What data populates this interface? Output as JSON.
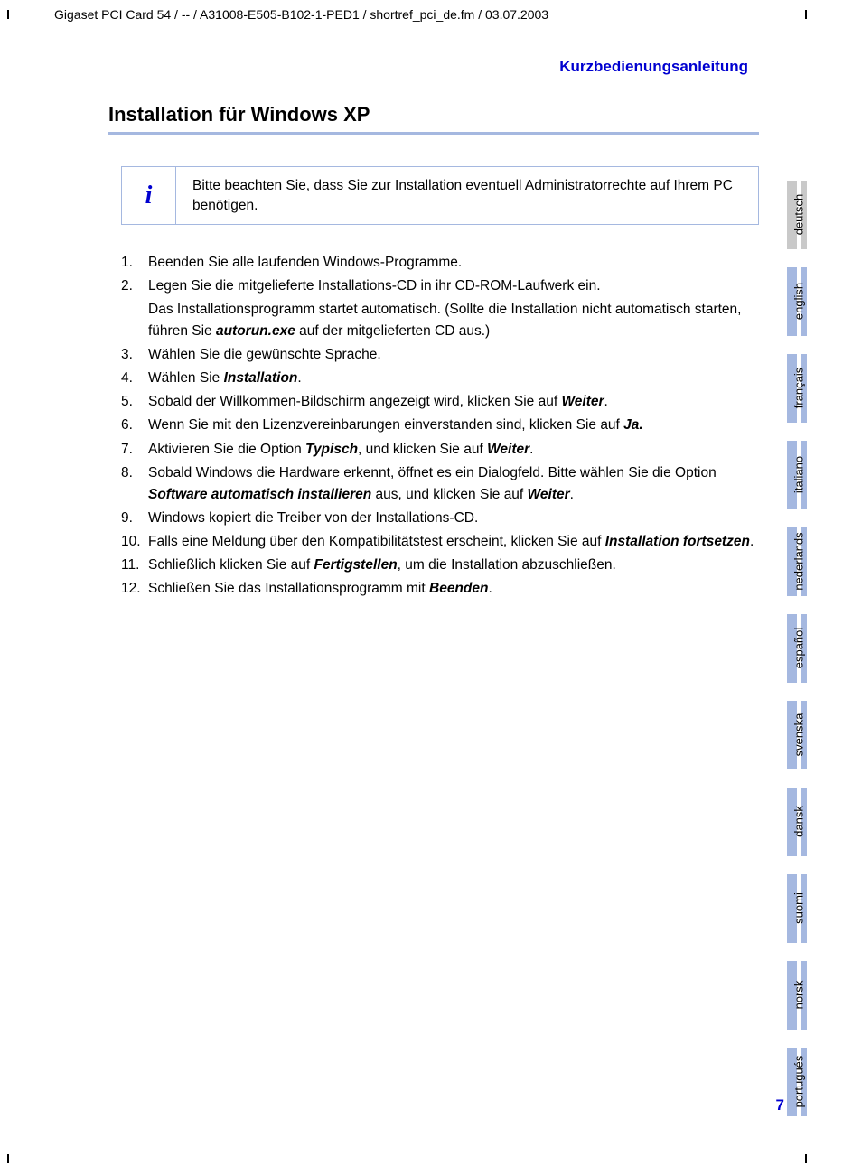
{
  "header_path": "Gigaset PCI Card 54 / -- / A31008-E505-B102-1-PED1 / shortref_pci_de.fm / 03.07.2003",
  "doc_header": "Kurzbedienungsanleitung",
  "section_title": "Installation für Windows XP",
  "info_icon": "i",
  "info_text": "Bitte beachten Sie, dass Sie zur Installation eventuell Administratorrechte auf Ihrem PC benötigen.",
  "steps": [
    {
      "n": "1.",
      "html": "Beenden Sie alle laufenden Windows-Programme."
    },
    {
      "n": "2.",
      "html": "Legen Sie die mitgelieferte Installations-CD in ihr CD-ROM-Laufwerk ein.",
      "sub": "Das Installationsprogramm startet automatisch. (Sollte die Installation nicht automatisch starten, führen Sie <span class='bi'>autorun.exe</span> auf der mitgelieferten CD aus.)"
    },
    {
      "n": "3.",
      "html": "Wählen Sie die gewünschte Sprache."
    },
    {
      "n": "4.",
      "html": "Wählen Sie <span class='bi'>Installation</span>."
    },
    {
      "n": "5.",
      "html": "Sobald der Willkommen-Bildschirm angezeigt wird, klicken Sie auf <span class='bi'>Weiter</span>."
    },
    {
      "n": "6.",
      "html": "Wenn Sie mit den Lizenzvereinbarungen einverstanden sind, klicken Sie auf <span class='bi'>Ja.</span>"
    },
    {
      "n": "7.",
      "html": "Aktivieren Sie die Option <span class='bi'>Typisch</span>, und klicken Sie auf <span class='bi'>Weiter</span>."
    },
    {
      "n": "8.",
      "html": "Sobald Windows die Hardware erkennt, öffnet es ein Dialogfeld. Bitte wählen Sie die Option <span class='bi'>Software automatisch installieren</span> aus, und klicken Sie auf <span class='bi'>Weiter</span>."
    },
    {
      "n": "9.",
      "html": "Windows kopiert die Treiber von der Installations-CD."
    },
    {
      "n": "10.",
      "html": "Falls eine Meldung über den Kompatibilitätstest erscheint, klicken Sie auf <span class='bi'>Installation fortsetzen</span>."
    },
    {
      "n": "11.",
      "html": "Schließlich klicken Sie auf <span class='bi'>Fertigstellen</span>, um die Installation abzuschließen."
    },
    {
      "n": "12.",
      "html": "Schließen Sie das Installationsprogramm mit <span class='bi'>Beenden</span>."
    }
  ],
  "tabs": [
    {
      "label": "deutsch",
      "active": true
    },
    {
      "label": "english",
      "active": false
    },
    {
      "label": "français",
      "active": false
    },
    {
      "label": "italiano",
      "active": false
    },
    {
      "label": "nederlands",
      "active": false
    },
    {
      "label": "español",
      "active": false
    },
    {
      "label": "svenska",
      "active": false
    },
    {
      "label": "dansk",
      "active": false
    },
    {
      "label": "suomi",
      "active": false
    },
    {
      "label": "norsk",
      "active": false
    },
    {
      "label": "portugués",
      "active": false
    }
  ],
  "page_number": "7",
  "colors": {
    "accent_blue": "#0000d0",
    "tab_blue": "#a5b8e0",
    "tab_gray": "#c9c9c9"
  }
}
